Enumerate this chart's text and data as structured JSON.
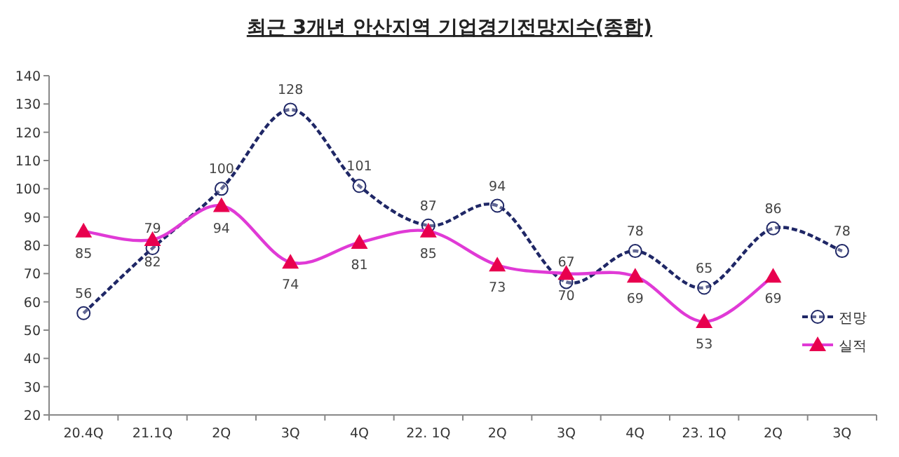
{
  "chart_data": {
    "type": "line",
    "title": "최근 3개년 안산지역 기업경기전망지수(종합)",
    "categories": [
      "20.4Q",
      "21.1Q",
      "2Q",
      "3Q",
      "4Q",
      "22. 1Q",
      "2Q",
      "3Q",
      "4Q",
      "23. 1Q",
      "2Q",
      "3Q"
    ],
    "series": [
      {
        "name": "전망",
        "color": "#1f2766",
        "line_style": "dashed",
        "marker": "circle",
        "values": [
          56,
          79,
          100,
          128,
          101,
          87,
          94,
          67,
          78,
          65,
          86,
          78
        ]
      },
      {
        "name": "실적",
        "color": "#e03ad6",
        "colors": [
          "#e8004e",
          "#e8004e",
          "#e8004e",
          "#e8004e",
          "#e8004e",
          "#e8004e",
          "#e8004e",
          "#e8004e",
          "#e8004e",
          "#e8004e",
          "#e8004e",
          null
        ],
        "line_style": "solid",
        "marker": "triangle",
        "values": [
          85,
          82,
          94,
          74,
          81,
          85,
          73,
          70,
          69,
          53,
          69,
          null
        ]
      }
    ],
    "ylim": [
      20,
      140
    ],
    "yticks": [
      20,
      30,
      40,
      50,
      60,
      70,
      80,
      90,
      100,
      110,
      120,
      130,
      140
    ],
    "grid": false,
    "legend": "right",
    "data_labels": true
  }
}
